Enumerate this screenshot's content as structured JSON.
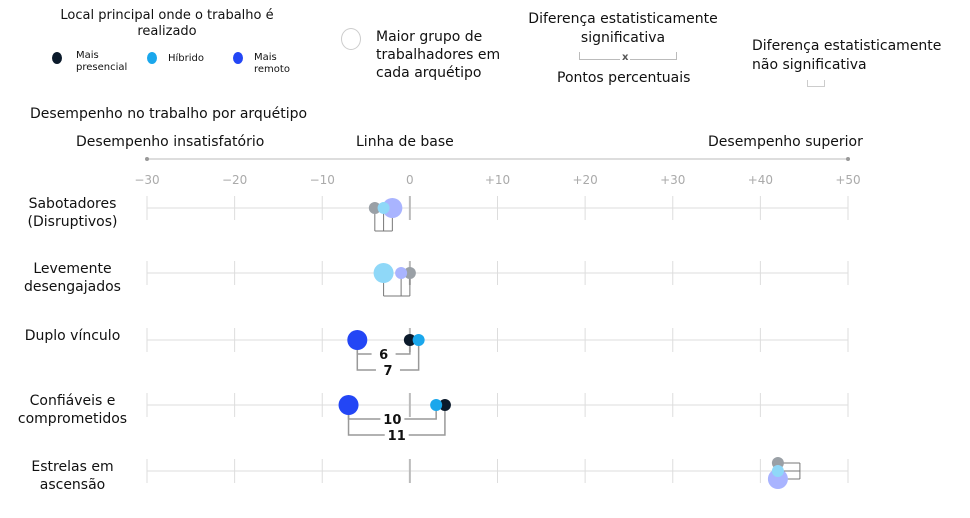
{
  "legend": {
    "location_title": "Local principal onde o trabalho é realizado",
    "location_items": [
      {
        "label": "Mais presencial",
        "color": "#0b1a2b"
      },
      {
        "label": "Híbrido",
        "color": "#1aa7ec"
      },
      {
        "label": "Mais remoto",
        "color": "#2346f5"
      }
    ],
    "largest_group": "Maior grupo de trabalhadores em cada arquétipo",
    "significant": "Diferença estatisticamente significativa",
    "significant_symbol": "x",
    "points_label": "Pontos percentuais",
    "not_significant": "Diferença estatisticamente não significativa"
  },
  "chart_data": {
    "type": "scatter",
    "title": "Desempenho no trabalho por arquétipo",
    "left_label": "Desempenho insatisfatório",
    "center_label": "Linha de base",
    "right_label": "Desempenho superior",
    "xlim": [
      -30,
      50
    ],
    "ticks": [
      "−30",
      "−20",
      "−10",
      "0",
      "+10",
      "+20",
      "+30",
      "+40",
      "+50"
    ],
    "tick_values": [
      -30,
      -20,
      -10,
      0,
      10,
      20,
      30,
      40,
      50
    ],
    "faded_colors": {
      "presencial": "#9aa0a6",
      "hibrido": "#8fd8f8",
      "remoto": "#a9b4ff"
    },
    "rows": [
      {
        "label": "Sabotadores (Disruptivos)",
        "significant": false,
        "largest": "remoto",
        "values": {
          "presencial": -4,
          "hibrido": -3,
          "remoto": -2
        },
        "diffs": []
      },
      {
        "label": "Levemente desengajados",
        "significant": false,
        "largest": "hibrido",
        "values": {
          "presencial": 0,
          "hibrido": -3,
          "remoto": -1
        },
        "diffs": []
      },
      {
        "label": "Duplo vínculo",
        "significant": true,
        "largest": "remoto",
        "values": {
          "presencial": 0,
          "hibrido": 1,
          "remoto": -6
        },
        "diffs": [
          {
            "from": "remoto",
            "to": "presencial",
            "value": "6"
          },
          {
            "from": "remoto",
            "to": "hibrido",
            "value": "7"
          }
        ]
      },
      {
        "label": "Confiáveis e comprometidos",
        "significant": true,
        "largest": "remoto",
        "values": {
          "presencial": 4,
          "hibrido": 3,
          "remoto": -7
        },
        "diffs": [
          {
            "from": "remoto",
            "to": "hibrido",
            "value": "10"
          },
          {
            "from": "remoto",
            "to": "presencial",
            "value": "11"
          }
        ]
      },
      {
        "label": "Estrelas em ascensão",
        "significant": false,
        "largest": "remoto",
        "stacked": true,
        "values": {
          "presencial": 42,
          "hibrido": 42,
          "remoto": 42
        },
        "diffs": []
      }
    ]
  }
}
